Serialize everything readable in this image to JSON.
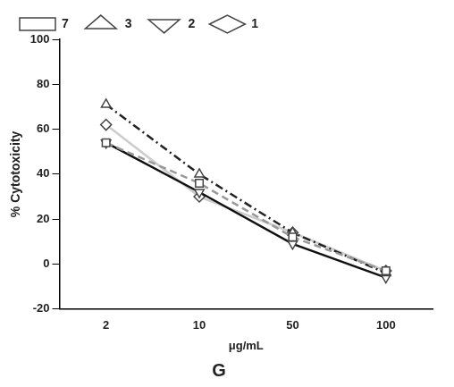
{
  "chart_data": {
    "type": "line",
    "title": "G",
    "x_label": "μg/mL",
    "y_label": "% Cytotoxicity",
    "categories": [
      "2",
      "10",
      "50",
      "100"
    ],
    "series": [
      {
        "name": "7",
        "color": "#999999",
        "marker": "square",
        "line_style": "dashed",
        "values": [
          54,
          36,
          12,
          -3
        ]
      },
      {
        "name": "3",
        "color": "#222222",
        "marker": "triangle",
        "line_style": "dashdot",
        "values": [
          71,
          40,
          14,
          -4
        ]
      },
      {
        "name": "2",
        "color": "#111111",
        "marker": "triangle_down",
        "line_style": "solid",
        "values": [
          54,
          32,
          9,
          -6
        ]
      },
      {
        "name": "1",
        "color": "#cccccc",
        "marker": "diamond",
        "line_style": "solid",
        "values": [
          62,
          30,
          14,
          -3
        ]
      }
    ],
    "ylim": [
      -20,
      100
    ],
    "yticks": [
      -20,
      0,
      20,
      40,
      60,
      80,
      100
    ],
    "grid": false,
    "legend": "top"
  }
}
